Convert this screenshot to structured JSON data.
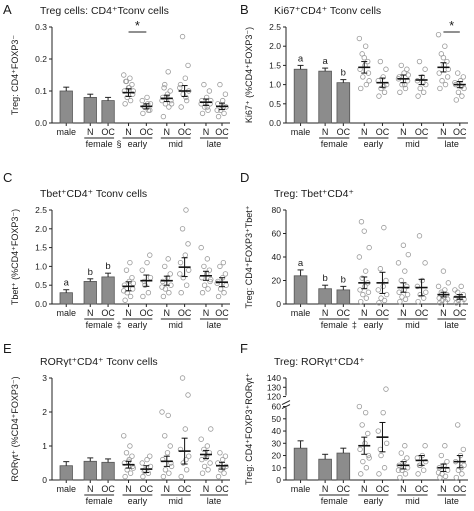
{
  "chart_data": [
    {
      "type": "bar",
      "panel": "A",
      "title": "Treg cells: CD4⁺Tconv cells",
      "ylabel": "Treg: CD4⁺FOXP3⁻",
      "ylim": [
        0,
        0.3
      ],
      "yticks": [
        "0.0",
        "0.1",
        "0.2",
        "0.3"
      ],
      "groups": [
        {
          "label": "",
          "cats": [
            "male"
          ],
          "mark": ""
        },
        {
          "label": "female",
          "cats": [
            "N",
            "OC"
          ],
          "mark": "§"
        },
        {
          "label": "early",
          "cats": [
            "N",
            "OC"
          ],
          "mark": ""
        },
        {
          "label": "mid",
          "cats": [
            "N",
            "OC"
          ],
          "mark": ""
        },
        {
          "label": "late",
          "cats": [
            "N",
            "OC"
          ],
          "mark": ""
        }
      ],
      "bars": [
        0.1,
        0.08,
        0.07
      ],
      "bar_errors": [
        0.012,
        0.01,
        0.01
      ],
      "bar_letters": [
        "",
        "",
        ""
      ],
      "scatter_means": [
        0.095,
        0.052,
        0.077,
        0.1,
        0.065,
        0.052
      ],
      "scatter_errors": [
        0.012,
        0.008,
        0.01,
        0.017,
        0.01,
        0.01
      ],
      "points": [
        [
          0.06,
          0.07,
          0.08,
          0.09,
          0.1,
          0.11,
          0.12,
          0.13,
          0.14,
          0.15,
          0.1,
          0.11,
          0.13
        ],
        [
          0.03,
          0.04,
          0.05,
          0.06,
          0.07,
          0.08,
          0.04,
          0.05,
          0.06
        ],
        [
          0.02,
          0.05,
          0.06,
          0.07,
          0.08,
          0.09,
          0.1,
          0.12,
          0.16,
          0.07,
          0.06,
          0.08,
          0.11
        ],
        [
          0.05,
          0.07,
          0.09,
          0.1,
          0.12,
          0.14,
          0.18,
          0.27,
          0.08,
          0.11
        ],
        [
          0.03,
          0.04,
          0.05,
          0.06,
          0.07,
          0.08,
          0.1,
          0.12,
          0.05,
          0.06,
          0.07
        ],
        [
          0.02,
          0.03,
          0.04,
          0.05,
          0.06,
          0.07,
          0.09,
          0.12,
          0.05,
          0.04
        ]
      ],
      "sig": [
        {
          "group": 2,
          "label": "*"
        }
      ]
    },
    {
      "type": "bar",
      "panel": "B",
      "title": "Ki67⁺CD4⁺ Tconv cells",
      "ylabel": "Ki67⁺ (%CD4⁺FOXP3⁻)",
      "ylim": [
        0,
        2.5
      ],
      "yticks": [
        "0.0",
        "0.5",
        "1.0",
        "1.5",
        "2.0",
        "2.5"
      ],
      "groups": [
        {
          "label": "",
          "cats": [
            "male"
          ],
          "mark": ""
        },
        {
          "label": "female",
          "cats": [
            "N",
            "OC"
          ],
          "mark": ""
        },
        {
          "label": "early",
          "cats": [
            "N",
            "OC"
          ],
          "mark": ""
        },
        {
          "label": "mid",
          "cats": [
            "N",
            "OC"
          ],
          "mark": ""
        },
        {
          "label": "late",
          "cats": [
            "N",
            "OC"
          ],
          "mark": ""
        }
      ],
      "bars": [
        1.4,
        1.35,
        1.05
      ],
      "bar_errors": [
        0.1,
        0.08,
        0.08
      ],
      "bar_letters": [
        "a",
        "a",
        "b"
      ],
      "scatter_means": [
        1.45,
        1.05,
        1.15,
        1.12,
        1.45,
        1.0
      ],
      "scatter_errors": [
        0.15,
        0.12,
        0.1,
        0.12,
        0.12,
        0.08
      ],
      "points": [
        [
          0.9,
          1.0,
          1.2,
          1.3,
          1.4,
          1.5,
          1.6,
          1.8,
          2.0,
          2.2,
          1.1,
          1.7
        ],
        [
          0.7,
          0.8,
          0.9,
          1.0,
          1.1,
          1.2,
          1.4,
          1.6,
          0.95
        ],
        [
          0.8,
          0.9,
          1.0,
          1.1,
          1.2,
          1.3,
          1.4,
          1.5,
          1.0,
          1.15,
          1.25
        ],
        [
          0.7,
          0.8,
          0.9,
          1.0,
          1.1,
          1.2,
          1.4,
          1.6,
          1.05
        ],
        [
          0.9,
          1.0,
          1.1,
          1.2,
          1.3,
          1.5,
          1.6,
          1.8,
          2.0,
          2.3,
          1.4,
          1.7
        ],
        [
          0.6,
          0.7,
          0.8,
          0.9,
          1.0,
          1.1,
          1.2,
          1.3,
          0.95,
          1.05
        ]
      ],
      "sig": [
        {
          "group": 4,
          "label": "*"
        }
      ]
    },
    {
      "type": "bar",
      "panel": "C",
      "title": "Tbet⁺CD4⁺ Tconv cells",
      "ylabel": "Tbet⁺ (%CD4⁺FOXP3⁻)",
      "ylim": [
        0,
        2.5
      ],
      "yticks": [
        "0.0",
        "0.5",
        "1.0",
        "1.5",
        "2.0",
        "2.5"
      ],
      "groups": [
        {
          "label": "",
          "cats": [
            "male"
          ],
          "mark": ""
        },
        {
          "label": "female",
          "cats": [
            "N",
            "OC"
          ],
          "mark": "‡"
        },
        {
          "label": "early",
          "cats": [
            "N",
            "OC"
          ],
          "mark": ""
        },
        {
          "label": "mid",
          "cats": [
            "N",
            "OC"
          ],
          "mark": ""
        },
        {
          "label": "late",
          "cats": [
            "N",
            "OC"
          ],
          "mark": ""
        }
      ],
      "bars": [
        0.3,
        0.6,
        0.72
      ],
      "bar_errors": [
        0.08,
        0.07,
        0.1
      ],
      "bar_letters": [
        "a",
        "b",
        "b"
      ],
      "scatter_means": [
        0.47,
        0.62,
        0.62,
        0.98,
        0.75,
        0.58
      ],
      "scatter_errors": [
        0.12,
        0.15,
        0.12,
        0.25,
        0.12,
        0.12
      ],
      "points": [
        [
          0.1,
          0.2,
          0.3,
          0.4,
          0.5,
          0.6,
          0.7,
          0.9,
          1.1,
          0.35,
          0.55
        ],
        [
          0.2,
          0.3,
          0.5,
          0.7,
          0.9,
          1.1,
          1.3,
          0.6
        ],
        [
          0.2,
          0.3,
          0.4,
          0.5,
          0.6,
          0.7,
          0.8,
          1.0,
          1.2,
          0.45
        ],
        [
          0.3,
          0.5,
          0.7,
          0.9,
          1.1,
          1.3,
          1.6,
          2.0,
          2.5,
          0.8
        ],
        [
          0.3,
          0.4,
          0.5,
          0.6,
          0.7,
          0.8,
          0.9,
          1.0,
          1.2,
          1.5,
          0.65
        ],
        [
          0.2,
          0.3,
          0.4,
          0.5,
          0.6,
          0.7,
          0.8,
          1.0,
          1.1,
          0.55
        ]
      ],
      "sig": []
    },
    {
      "type": "bar",
      "panel": "D",
      "title": "Treg: Tbet⁺CD4⁺",
      "ylabel": "Treg: CD4⁺FOXP3⁺Tbet⁺",
      "ylim": [
        0,
        80
      ],
      "yticks": [
        "0",
        "20",
        "40",
        "60",
        "80"
      ],
      "groups": [
        {
          "label": "",
          "cats": [
            "male"
          ],
          "mark": ""
        },
        {
          "label": "female",
          "cats": [
            "N",
            "OC"
          ],
          "mark": "‡"
        },
        {
          "label": "early",
          "cats": [
            "N",
            "OC"
          ],
          "mark": ""
        },
        {
          "label": "mid",
          "cats": [
            "N",
            "OC"
          ],
          "mark": ""
        },
        {
          "label": "late",
          "cats": [
            "N",
            "OC"
          ],
          "mark": ""
        }
      ],
      "bars": [
        24,
        13,
        12
      ],
      "bar_errors": [
        5,
        3,
        3
      ],
      "bar_letters": [
        "a",
        "b",
        "b"
      ],
      "scatter_means": [
        18,
        18,
        14,
        14,
        8,
        6
      ],
      "scatter_errors": [
        5,
        9,
        4,
        7,
        2,
        2
      ],
      "points": [
        [
          2,
          5,
          8,
          10,
          12,
          15,
          18,
          22,
          28,
          40,
          48,
          62,
          70
        ],
        [
          1,
          3,
          5,
          8,
          12,
          15,
          20,
          30,
          65
        ],
        [
          2,
          4,
          6,
          8,
          10,
          12,
          15,
          20,
          28,
          35,
          42,
          50
        ],
        [
          2,
          5,
          8,
          10,
          15,
          20,
          35,
          58
        ],
        [
          1,
          2,
          3,
          4,
          5,
          6,
          8,
          10,
          12,
          15,
          18,
          28
        ],
        [
          1,
          2,
          3,
          4,
          5,
          6,
          8,
          10,
          15,
          12
        ]
      ],
      "sig": []
    },
    {
      "type": "bar",
      "panel": "E",
      "title": "RORγt⁺CD4⁺ Tconv cells",
      "ylabel": "RORγt⁺ (%CD4⁺FOXP3⁻)",
      "ylim": [
        0,
        3
      ],
      "yticks": [
        "0",
        "1",
        "2",
        "3"
      ],
      "groups": [
        {
          "label": "",
          "cats": [
            "male"
          ],
          "mark": ""
        },
        {
          "label": "female",
          "cats": [
            "N",
            "OC"
          ],
          "mark": ""
        },
        {
          "label": "early",
          "cats": [
            "N",
            "OC"
          ],
          "mark": ""
        },
        {
          "label": "mid",
          "cats": [
            "N",
            "OC"
          ],
          "mark": ""
        },
        {
          "label": "late",
          "cats": [
            "N",
            "OC"
          ],
          "mark": ""
        }
      ],
      "bars": [
        0.42,
        0.55,
        0.52
      ],
      "bar_errors": [
        0.12,
        0.1,
        0.1
      ],
      "bar_letters": [
        "",
        "",
        ""
      ],
      "scatter_means": [
        0.45,
        0.32,
        0.55,
        0.85,
        0.75,
        0.42
      ],
      "scatter_errors": [
        0.1,
        0.1,
        0.15,
        0.38,
        0.12,
        0.1
      ],
      "points": [
        [
          0.1,
          0.2,
          0.3,
          0.4,
          0.5,
          0.6,
          0.7,
          0.8,
          1.0,
          1.3,
          0.35,
          0.55
        ],
        [
          0.1,
          0.2,
          0.3,
          0.4,
          0.5,
          0.6,
          0.7,
          0.25
        ],
        [
          0.1,
          0.2,
          0.3,
          0.5,
          0.6,
          0.8,
          1.0,
          1.3,
          1.9,
          2.0,
          0.4
        ],
        [
          0.1,
          0.3,
          0.5,
          0.7,
          0.9,
          1.5,
          2.5,
          3.0,
          0.6
        ],
        [
          0.2,
          0.3,
          0.4,
          0.5,
          0.6,
          0.7,
          0.8,
          0.9,
          1.0,
          1.2,
          1.5,
          0.65
        ],
        [
          0.1,
          0.2,
          0.3,
          0.4,
          0.5,
          0.6,
          0.7,
          0.8,
          0.35
        ]
      ],
      "sig": []
    },
    {
      "type": "bar",
      "panel": "F",
      "title": "Treg: RORγt⁺CD4⁺",
      "ylabel": "Treg: CD4⁺FOXP3⁺RORγt⁺",
      "ylim": [
        0,
        140
      ],
      "axis_break": [
        60,
        120
      ],
      "yticks": [
        "0",
        "10",
        "20",
        "30",
        "40",
        "50",
        "60",
        "120",
        "130",
        "140"
      ],
      "groups": [
        {
          "label": "",
          "cats": [
            "male"
          ],
          "mark": ""
        },
        {
          "label": "female",
          "cats": [
            "N",
            "OC"
          ],
          "mark": ""
        },
        {
          "label": "early",
          "cats": [
            "N",
            "OC"
          ],
          "mark": ""
        },
        {
          "label": "mid",
          "cats": [
            "N",
            "OC"
          ],
          "mark": ""
        },
        {
          "label": "late",
          "cats": [
            "N",
            "OC"
          ],
          "mark": ""
        }
      ],
      "bars": [
        26,
        17,
        22
      ],
      "bar_errors": [
        6,
        4,
        4
      ],
      "bar_letters": [
        "",
        "",
        ""
      ],
      "scatter_means": [
        28,
        35,
        12,
        16,
        10,
        15
      ],
      "scatter_errors": [
        7,
        12,
        3,
        4,
        3,
        5
      ],
      "points": [
        [
          5,
          10,
          15,
          20,
          25,
          30,
          38,
          45,
          55,
          60,
          18
        ],
        [
          5,
          10,
          20,
          30,
          40,
          55,
          128,
          25
        ],
        [
          2,
          5,
          8,
          10,
          12,
          15,
          18,
          22,
          28,
          8
        ],
        [
          5,
          8,
          12,
          15,
          18,
          20,
          28,
          12
        ],
        [
          2,
          3,
          5,
          8,
          10,
          12,
          15,
          20,
          28,
          6
        ],
        [
          2,
          5,
          8,
          12,
          15,
          20,
          25,
          45,
          10
        ]
      ],
      "sig": []
    }
  ]
}
